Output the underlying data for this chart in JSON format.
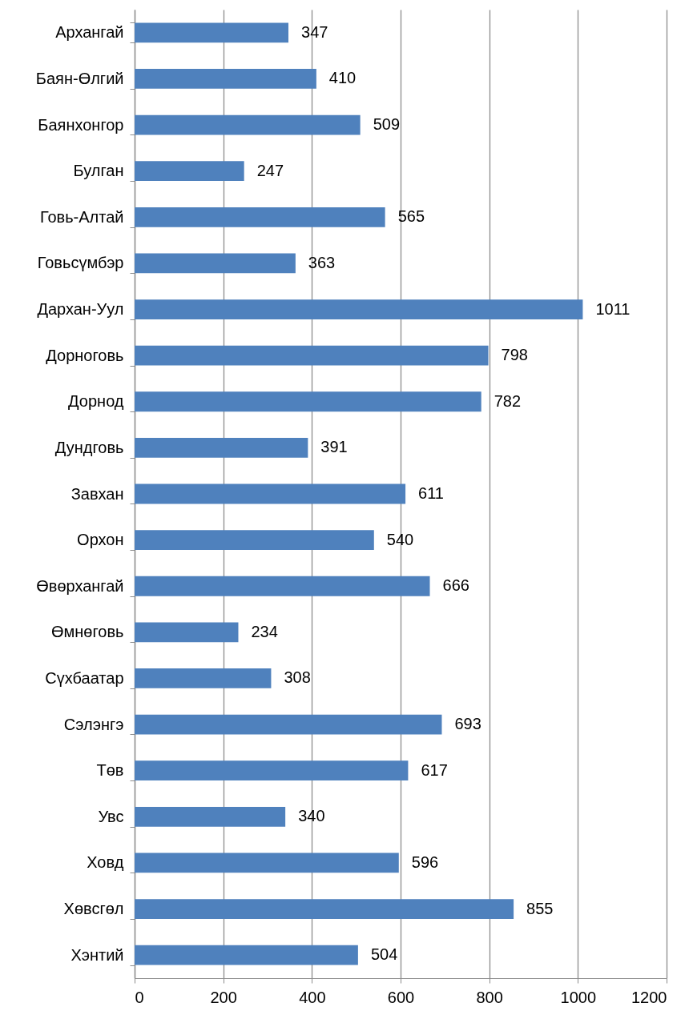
{
  "chart_data": {
    "type": "bar",
    "orientation": "horizontal",
    "categories": [
      "Архангай",
      "Баян-Өлгий",
      "Баянхонгор",
      "Булган",
      "Говь-Алтай",
      "Говьсүмбэр",
      "Дархан-Уул",
      "Дорноговь",
      "Дорнод",
      "Дундговь",
      "Завхан",
      "Орхон",
      "Өвөрхангай",
      "Өмнөговь",
      "Сүхбаатар",
      "Сэлэнгэ",
      "Төв",
      "Увс",
      "Ховд",
      "Хөвсгөл",
      "Хэнтий"
    ],
    "values": [
      347,
      410,
      509,
      247,
      565,
      363,
      1011,
      798,
      782,
      391,
      611,
      540,
      666,
      234,
      308,
      693,
      617,
      340,
      596,
      855,
      504
    ],
    "color": "#4f81bd",
    "xlim": [
      0,
      1200
    ],
    "xticks": [
      0,
      200,
      400,
      600,
      800,
      1000,
      1200
    ],
    "grid": "x",
    "data_labels": true
  }
}
